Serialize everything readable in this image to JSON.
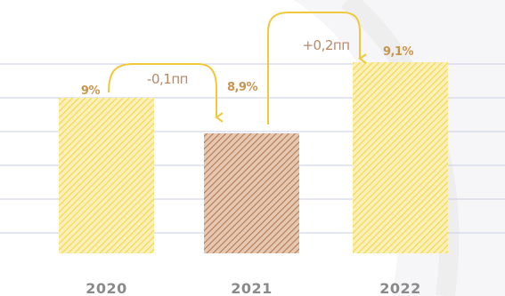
{
  "chart_data": {
    "type": "bar",
    "categories": [
      "2020",
      "2021",
      "2022"
    ],
    "values": [
      9.0,
      8.9,
      9.1
    ],
    "value_labels": [
      "9%",
      "8,9%",
      "9,1%"
    ],
    "changes": [
      "-0,1пп",
      "+0,2пп"
    ],
    "grid": true,
    "colors": {
      "bar_light": "#f3d64b",
      "bar_dark": "#b27a52",
      "value_label": "#c8954e",
      "arrow": "#f0c93a",
      "change_label": "#b8896a",
      "grid": "#c9cde6",
      "year": "#8a8a8a"
    }
  }
}
